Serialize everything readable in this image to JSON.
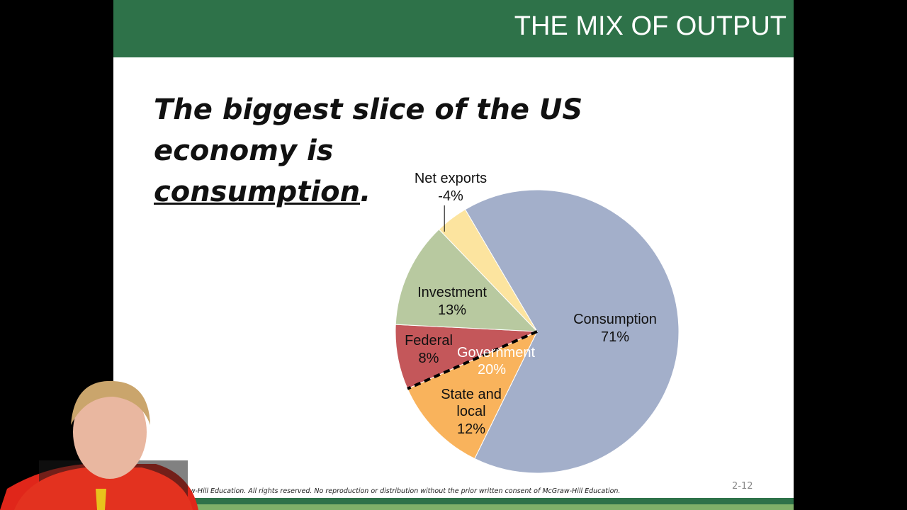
{
  "slide": {
    "header": "THE MIX OF OUTPUT",
    "headline": {
      "text": "The biggest slice of the US economy is",
      "emphasis": "consumption",
      "end": "."
    },
    "footer": "raw-Hill Education. All rights reserved. No reproduction or distribution without the prior written consent of McGraw-Hill Education.",
    "page_number": "2-12"
  },
  "chart_data": {
    "type": "pie",
    "categories": [
      "Consumption",
      "State and local",
      "Federal",
      "Investment",
      "Net exports"
    ],
    "values": [
      71,
      12,
      8,
      13,
      -4
    ],
    "value_labels": [
      "71%",
      "12%",
      "8%",
      "13%",
      "-4%"
    ],
    "colors": [
      "#a3afca",
      "#f9b35c",
      "#c4575a",
      "#b8c9a0",
      "#fce49f"
    ],
    "group": {
      "name": "Government",
      "value": 20,
      "value_label": "20%"
    }
  }
}
